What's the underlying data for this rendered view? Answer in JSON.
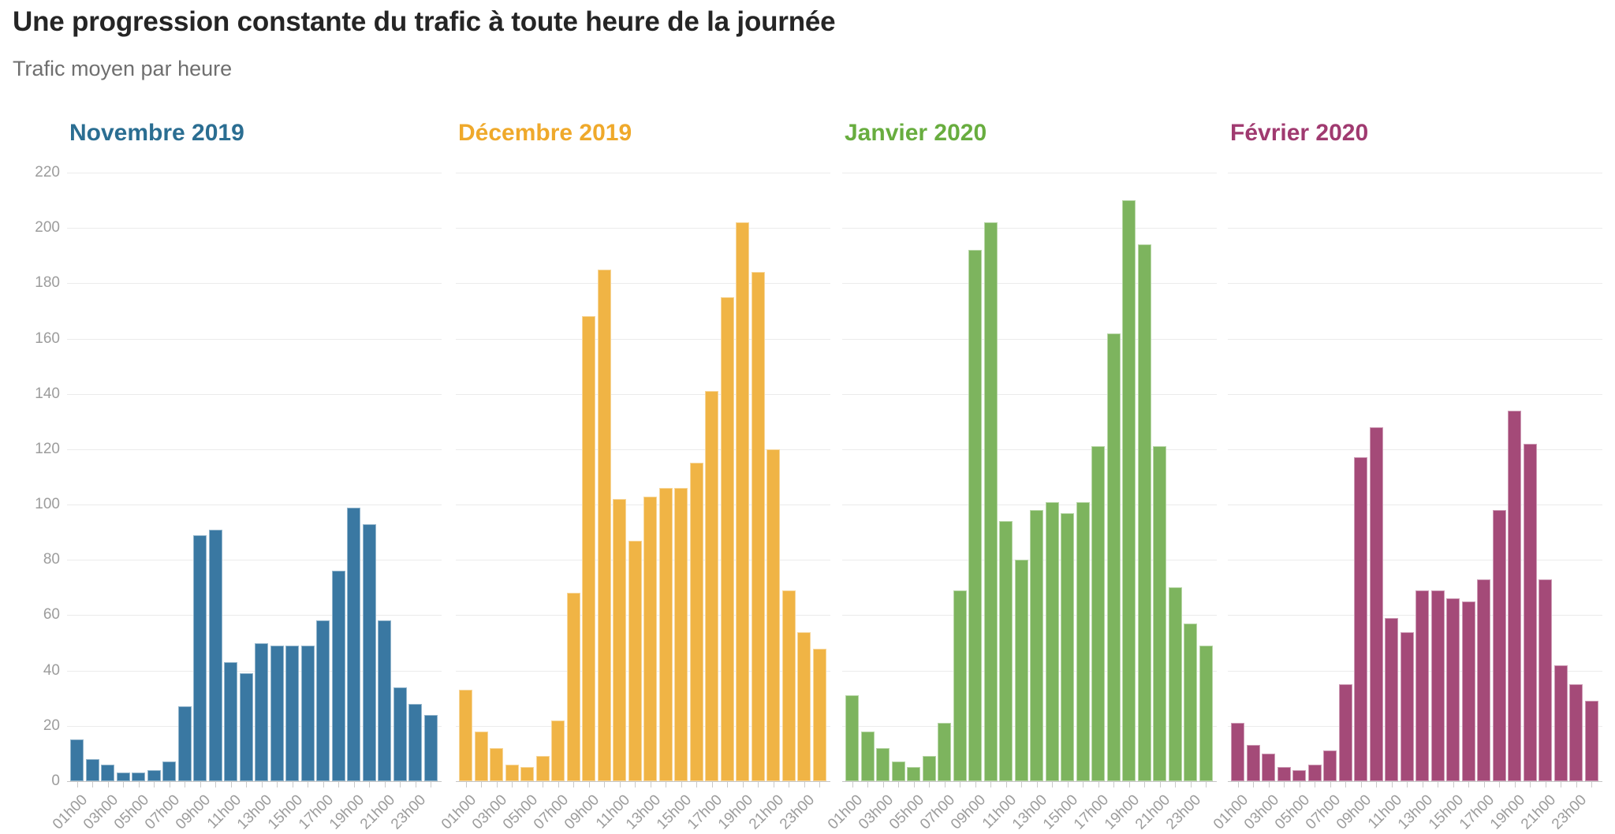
{
  "page": {
    "title": "Une progression constante du trafic à toute heure de la journée",
    "subtitle": "Trafic moyen par heure"
  },
  "style": {
    "title_color": "#252525",
    "subtitle_color": "#6f6f6f",
    "axis_text_color": "#9c9c9c",
    "gridline_color": "#ebebeb",
    "baseline_color": "#c6c6c6"
  },
  "chart_data": {
    "type": "bar",
    "title": "Une progression constante du trafic à toute heure de la journée",
    "subtitle": "Trafic moyen par heure",
    "layout_hints": {
      "small_multiples": 4,
      "grid": "on",
      "y_labels_on_first_panel_only": true,
      "x_labels_rotated_degrees": 45
    },
    "ylabel": "",
    "xlabel": "",
    "ylim": [
      0,
      220
    ],
    "y_ticks": [
      0,
      20,
      40,
      60,
      80,
      100,
      120,
      140,
      160,
      180,
      200,
      220
    ],
    "categories": [
      "01h00",
      "02h00",
      "03h00",
      "04h00",
      "05h00",
      "06h00",
      "07h00",
      "08h00",
      "09h00",
      "10h00",
      "11h00",
      "12h00",
      "13h00",
      "14h00",
      "15h00",
      "16h00",
      "17h00",
      "18h00",
      "19h00",
      "20h00",
      "21h00",
      "22h00",
      "23h00",
      "24h00"
    ],
    "x_tick_labels": [
      "01h00",
      "03h00",
      "05h00",
      "07h00",
      "09h00",
      "11h00",
      "13h00",
      "15h00",
      "17h00",
      "19h00",
      "21h00",
      "23h00"
    ],
    "series": [
      {
        "name": "Novembre 2019",
        "bar_color": "#3a78a2",
        "header_color": "#2b6e92",
        "values": [
          15,
          8,
          6,
          3,
          3,
          4,
          7,
          27,
          89,
          91,
          43,
          39,
          50,
          49,
          49,
          49,
          58,
          76,
          99,
          93,
          58,
          34,
          28,
          24
        ]
      },
      {
        "name": "Décembre 2019",
        "bar_color": "#f0b445",
        "header_color": "#efa92b",
        "values": [
          33,
          18,
          12,
          6,
          5,
          9,
          22,
          68,
          168,
          185,
          102,
          87,
          103,
          106,
          106,
          115,
          141,
          175,
          202,
          184,
          120,
          69,
          54,
          48
        ]
      },
      {
        "name": "Janvier 2020",
        "bar_color": "#7db45e",
        "header_color": "#68ad3f",
        "values": [
          31,
          18,
          12,
          7,
          5,
          9,
          21,
          69,
          192,
          202,
          94,
          80,
          98,
          101,
          97,
          101,
          121,
          162,
          210,
          194,
          121,
          70,
          57,
          49
        ]
      },
      {
        "name": "Février 2020",
        "bar_color": "#a44a78",
        "header_color": "#a03a70",
        "values": [
          21,
          13,
          10,
          5,
          4,
          6,
          11,
          35,
          117,
          128,
          59,
          54,
          69,
          69,
          66,
          65,
          73,
          98,
          134,
          122,
          73,
          42,
          35,
          29
        ]
      }
    ]
  }
}
